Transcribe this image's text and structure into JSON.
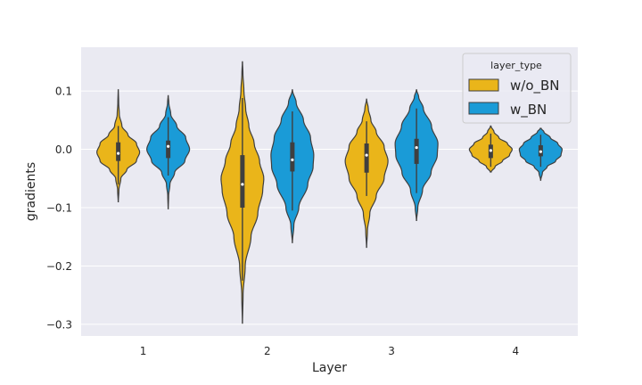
{
  "chart_data": {
    "type": "violin",
    "xlabel": "Layer",
    "ylabel": "gradients",
    "categories": [
      "1",
      "2",
      "3",
      "4"
    ],
    "ylim": [
      -0.32,
      0.175
    ],
    "yticks": [
      0.1,
      0.0,
      -0.1,
      -0.2,
      -0.3
    ],
    "ytick_labels": [
      "0.1",
      "0.0",
      "−0.1",
      "−0.2",
      "−0.3"
    ],
    "grid": true,
    "legend": {
      "title": "layer_type",
      "placement": "top-right"
    },
    "series": [
      {
        "name": "w/o_BN",
        "color": "#eab51a",
        "violins": [
          {
            "category": "1",
            "min": -0.09,
            "max": 0.102,
            "q1": -0.02,
            "median": -0.007,
            "q3": 0.012,
            "wlo": -0.06,
            "whi": 0.04,
            "profile": [
              [
                -0.09,
                0.004
              ],
              [
                -0.07,
                0.03
              ],
              [
                -0.05,
                0.12
              ],
              [
                -0.035,
                0.4
              ],
              [
                -0.02,
                0.85
              ],
              [
                -0.005,
                1.0
              ],
              [
                0.01,
                0.85
              ],
              [
                0.025,
                0.45
              ],
              [
                0.04,
                0.17
              ],
              [
                0.06,
                0.05
              ],
              [
                0.08,
                0.02
              ],
              [
                0.102,
                0.004
              ]
            ]
          },
          {
            "category": "2",
            "min": -0.298,
            "max": 0.15,
            "q1": -0.1,
            "median": -0.06,
            "q3": -0.01,
            "wlo": -0.225,
            "whi": 0.088,
            "profile": [
              [
                -0.298,
                0.004
              ],
              [
                -0.25,
                0.03
              ],
              [
                -0.2,
                0.13
              ],
              [
                -0.15,
                0.4
              ],
              [
                -0.11,
                0.72
              ],
              [
                -0.07,
                0.95
              ],
              [
                -0.05,
                1.0
              ],
              [
                -0.02,
                0.8
              ],
              [
                0.01,
                0.55
              ],
              [
                0.04,
                0.3
              ],
              [
                0.07,
                0.15
              ],
              [
                0.1,
                0.07
              ],
              [
                0.13,
                0.025
              ],
              [
                0.15,
                0.004
              ]
            ]
          },
          {
            "category": "3",
            "min": -0.168,
            "max": 0.086,
            "q1": -0.04,
            "median": -0.01,
            "q3": 0.01,
            "wlo": -0.08,
            "whi": 0.048,
            "profile": [
              [
                -0.168,
                0.004
              ],
              [
                -0.14,
                0.04
              ],
              [
                -0.11,
                0.15
              ],
              [
                -0.08,
                0.45
              ],
              [
                -0.05,
                0.82
              ],
              [
                -0.02,
                1.0
              ],
              [
                0.005,
                0.82
              ],
              [
                0.03,
                0.45
              ],
              [
                0.05,
                0.2
              ],
              [
                0.07,
                0.08
              ],
              [
                0.086,
                0.004
              ]
            ]
          },
          {
            "category": "4",
            "min": -0.039,
            "max": 0.04,
            "q1": -0.015,
            "median": -0.002,
            "q3": 0.008,
            "wlo": -0.03,
            "whi": 0.027,
            "profile": [
              [
                -0.039,
                0.02
              ],
              [
                -0.03,
                0.2
              ],
              [
                -0.02,
                0.55
              ],
              [
                -0.01,
                0.88
              ],
              [
                0.0,
                1.0
              ],
              [
                0.01,
                0.78
              ],
              [
                0.02,
                0.38
              ],
              [
                0.03,
                0.15
              ],
              [
                0.04,
                0.01
              ]
            ]
          }
        ]
      },
      {
        "name": "w_BN",
        "color": "#1a9bd7",
        "violins": [
          {
            "category": "1",
            "min": -0.102,
            "max": 0.092,
            "q1": -0.015,
            "median": 0.005,
            "q3": 0.015,
            "wlo": -0.045,
            "whi": 0.055,
            "profile": [
              [
                -0.102,
                0.004
              ],
              [
                -0.08,
                0.02
              ],
              [
                -0.06,
                0.08
              ],
              [
                -0.04,
                0.3
              ],
              [
                -0.02,
                0.78
              ],
              [
                0.0,
                1.0
              ],
              [
                0.02,
                0.82
              ],
              [
                0.04,
                0.4
              ],
              [
                0.06,
                0.12
              ],
              [
                0.08,
                0.03
              ],
              [
                0.092,
                0.004
              ]
            ]
          },
          {
            "category": "2",
            "min": -0.16,
            "max": 0.102,
            "q1": -0.038,
            "median": -0.018,
            "q3": 0.012,
            "wlo": -0.105,
            "whi": 0.065,
            "profile": [
              [
                -0.16,
                0.004
              ],
              [
                -0.13,
                0.07
              ],
              [
                -0.1,
                0.3
              ],
              [
                -0.06,
                0.72
              ],
              [
                -0.03,
                0.97
              ],
              [
                -0.01,
                1.0
              ],
              [
                0.02,
                0.85
              ],
              [
                0.05,
                0.52
              ],
              [
                0.08,
                0.18
              ],
              [
                0.102,
                0.004
              ]
            ]
          },
          {
            "category": "3",
            "min": -0.122,
            "max": 0.102,
            "q1": -0.025,
            "median": 0.003,
            "q3": 0.018,
            "wlo": -0.075,
            "whi": 0.07,
            "profile": [
              [
                -0.122,
                0.004
              ],
              [
                -0.1,
                0.06
              ],
              [
                -0.07,
                0.28
              ],
              [
                -0.04,
                0.68
              ],
              [
                -0.01,
                0.97
              ],
              [
                0.01,
                1.0
              ],
              [
                0.04,
                0.7
              ],
              [
                0.07,
                0.32
              ],
              [
                0.09,
                0.1
              ],
              [
                0.102,
                0.004
              ]
            ]
          },
          {
            "category": "4",
            "min": -0.053,
            "max": 0.036,
            "q1": -0.012,
            "median": -0.004,
            "q3": 0.007,
            "wlo": -0.03,
            "whi": 0.025,
            "profile": [
              [
                -0.053,
                0.004
              ],
              [
                -0.04,
                0.08
              ],
              [
                -0.03,
                0.3
              ],
              [
                -0.02,
                0.7
              ],
              [
                -0.01,
                0.95
              ],
              [
                0.0,
                1.0
              ],
              [
                0.01,
                0.8
              ],
              [
                0.02,
                0.45
              ],
              [
                0.03,
                0.15
              ],
              [
                0.036,
                0.02
              ]
            ]
          }
        ]
      }
    ]
  }
}
